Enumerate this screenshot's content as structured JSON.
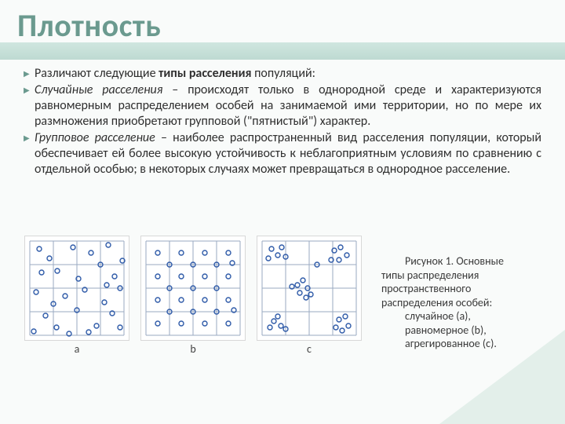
{
  "title": "Плотность",
  "bullets": [
    {
      "prefix": "Различают следующие ",
      "bold": "типы расселения",
      "suffix": " популяций:"
    },
    {
      "term": "Случайные расселения",
      "rest": " – происходят только в однородной среде и характеризуются равномерным распределением особей на занимаемой ими территории, но по мере их размножения приобретают групповой (\"пятнистый\") характер."
    },
    {
      "term": "Групповое расселение",
      "rest": " – наиболее распространенный вид расселения популяции, который обеспечивает ей более высокую устойчивость к неблагоприятным условиям по сравнению с отдельной особью; в некоторых случаях может превращаться в однородное расселение."
    }
  ],
  "figure": {
    "grid": {
      "size": 4,
      "stroke": "#9aaac2",
      "stroke_width": 1
    },
    "marker": {
      "stroke": "#2e5aa8",
      "fill": "none",
      "r": 3,
      "stroke_width": 1.4
    },
    "panels": [
      {
        "label": "a",
        "points": [
          [
            12,
            10
          ],
          [
            25,
            22
          ],
          [
            55,
            8
          ],
          [
            78,
            15
          ],
          [
            100,
            5
          ],
          [
            15,
            40
          ],
          [
            35,
            38
          ],
          [
            62,
            48
          ],
          [
            90,
            30
          ],
          [
            108,
            45
          ],
          [
            8,
            65
          ],
          [
            45,
            70
          ],
          [
            70,
            62
          ],
          [
            95,
            78
          ],
          [
            115,
            60
          ],
          [
            20,
            95
          ],
          [
            34,
            110
          ],
          [
            60,
            88
          ],
          [
            85,
            108
          ],
          [
            105,
            92
          ],
          [
            50,
            118
          ],
          [
            75,
            116
          ],
          [
            115,
            110
          ],
          [
            98,
            56
          ],
          [
            30,
            80
          ],
          [
            118,
            25
          ],
          [
            5,
            115
          ]
        ]
      },
      {
        "label": "b",
        "points": [
          [
            15,
            15
          ],
          [
            45,
            15
          ],
          [
            75,
            15
          ],
          [
            105,
            15
          ],
          [
            15,
            45
          ],
          [
            45,
            45
          ],
          [
            75,
            45
          ],
          [
            105,
            45
          ],
          [
            15,
            75
          ],
          [
            45,
            75
          ],
          [
            75,
            75
          ],
          [
            105,
            75
          ],
          [
            15,
            105
          ],
          [
            45,
            105
          ],
          [
            75,
            105
          ],
          [
            105,
            105
          ],
          [
            30,
            30
          ],
          [
            60,
            30
          ],
          [
            90,
            30
          ],
          [
            110,
            28
          ],
          [
            30,
            60
          ],
          [
            60,
            60
          ],
          [
            90,
            60
          ],
          [
            30,
            90
          ],
          [
            60,
            90
          ],
          [
            90,
            90
          ],
          [
            112,
            88
          ]
        ]
      },
      {
        "label": "c",
        "points": [
          [
            12,
            10
          ],
          [
            20,
            18
          ],
          [
            8,
            22
          ],
          [
            25,
            8
          ],
          [
            30,
            20
          ],
          [
            92,
            12
          ],
          [
            100,
            8
          ],
          [
            108,
            18
          ],
          [
            98,
            24
          ],
          [
            88,
            24
          ],
          [
            45,
            56
          ],
          [
            52,
            50
          ],
          [
            58,
            60
          ],
          [
            48,
            66
          ],
          [
            38,
            58
          ],
          [
            62,
            68
          ],
          [
            56,
            72
          ],
          [
            15,
            102
          ],
          [
            10,
            110
          ],
          [
            24,
            108
          ],
          [
            20,
            96
          ],
          [
            30,
            112
          ],
          [
            98,
            100
          ],
          [
            106,
            96
          ],
          [
            110,
            108
          ],
          [
            94,
            110
          ],
          [
            102,
            114
          ],
          [
            70,
            30
          ]
        ]
      }
    ]
  },
  "caption": {
    "lead": "Рисунок 1. Основные",
    "lines": [
      "типы распределения",
      "пространственного",
      "распределения особей:"
    ],
    "items": [
      "случайное (a),",
      "равномерное (b),",
      "агрегированное (c)."
    ]
  },
  "colors": {
    "title": "#6b9a8f",
    "accent_bar_top": "#cfe6df",
    "accent_bar_bottom": "#bedad2",
    "corner": "#e3efea",
    "background": "#f9fbfa",
    "text": "#2f2f2f",
    "panel_border": "#d8d8d8"
  },
  "fontsizes": {
    "title": 40,
    "body": 16,
    "caption": 14,
    "panel_label": 14
  }
}
